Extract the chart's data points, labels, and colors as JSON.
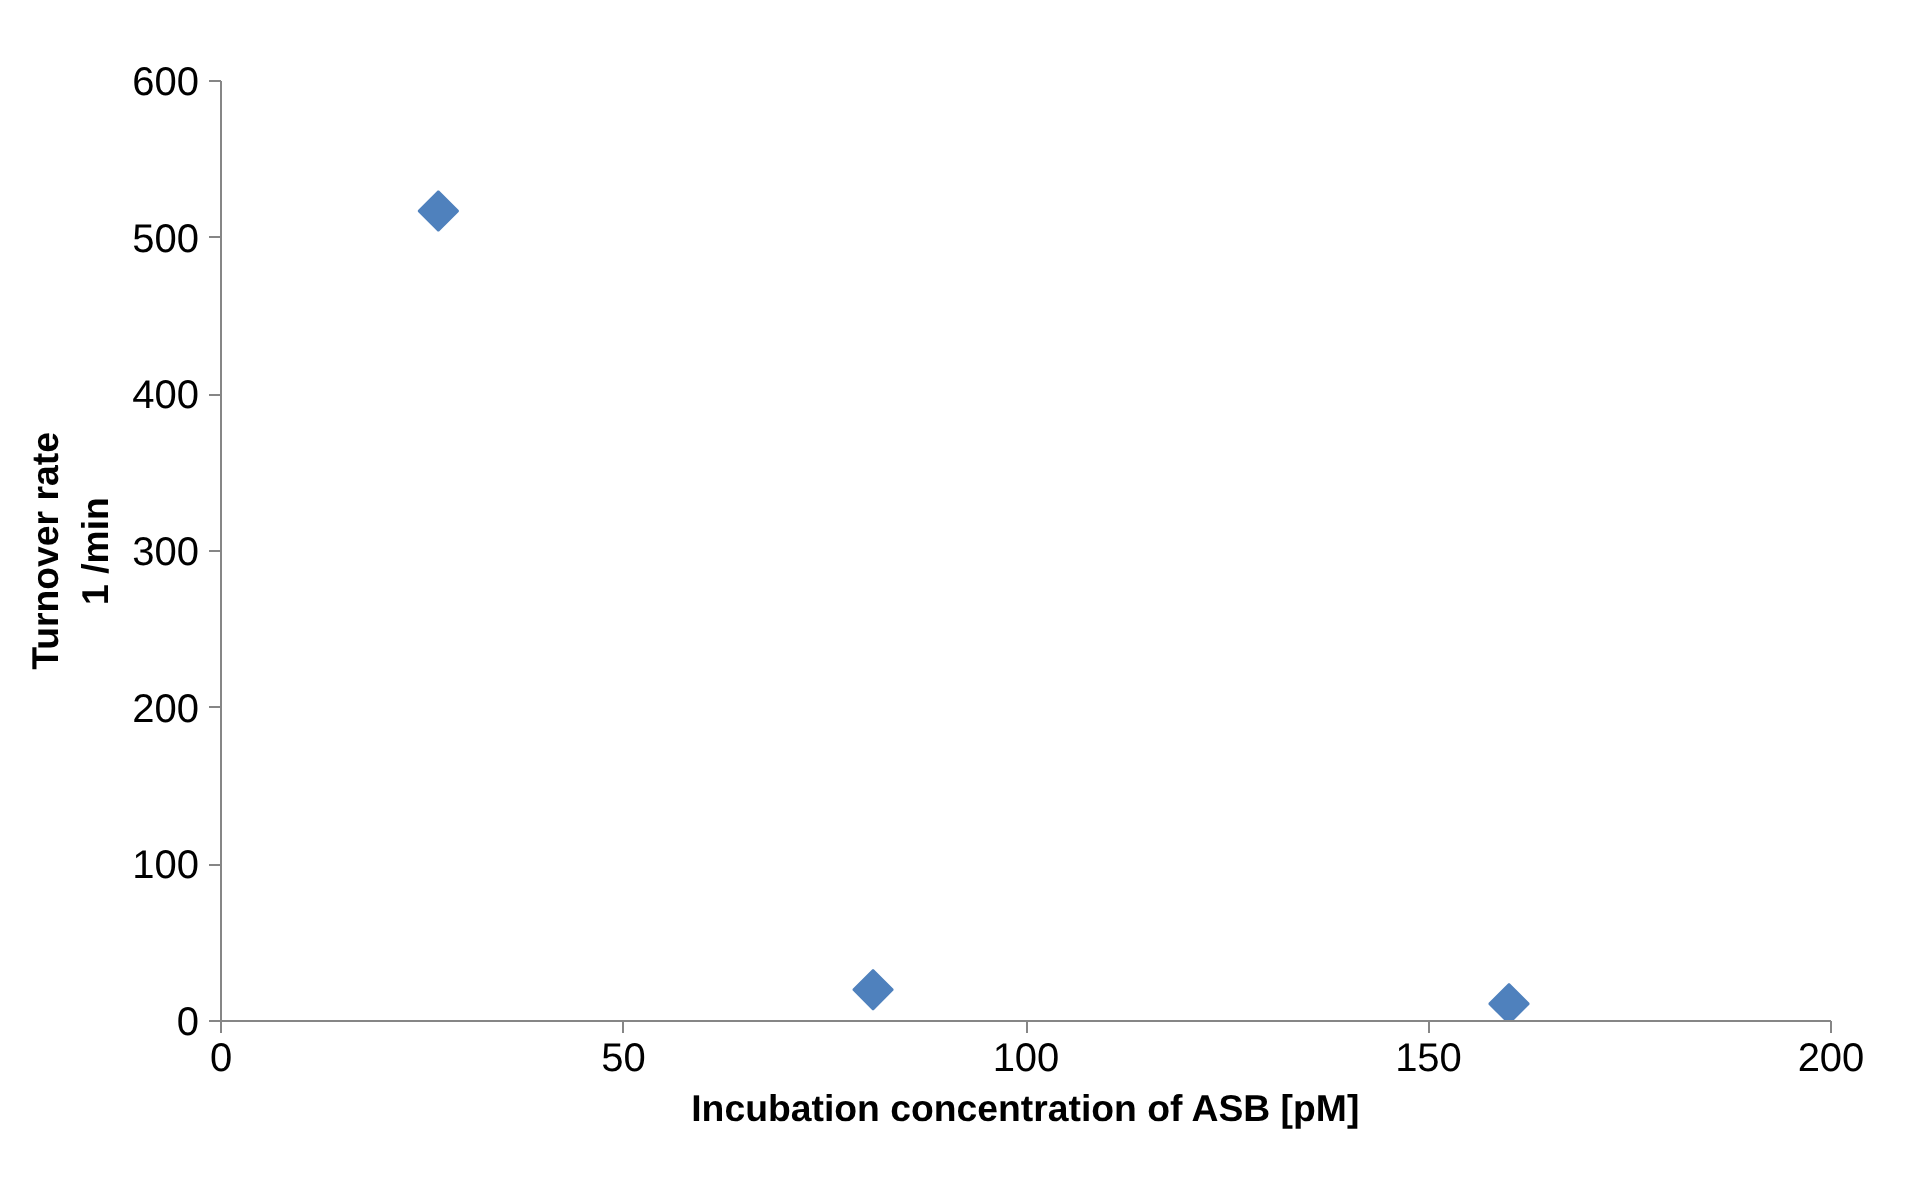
{
  "chart_data": {
    "type": "scatter",
    "xlabel": "Incubation concentration of ASB [pM]",
    "ylabel": "Turnover rate\n1 /min",
    "x": [
      27,
      81,
      160
    ],
    "series": [
      {
        "color": "#4f81bd",
        "values": [
          517,
          20,
          11
        ]
      }
    ],
    "xlim": [
      0,
      200
    ],
    "xticks": [
      0,
      50,
      100,
      150,
      200
    ],
    "ylim": [
      0,
      600
    ],
    "yticks": [
      0,
      100,
      200,
      300,
      400,
      500,
      600
    ],
    "grid": false,
    "marker": "diamond"
  }
}
